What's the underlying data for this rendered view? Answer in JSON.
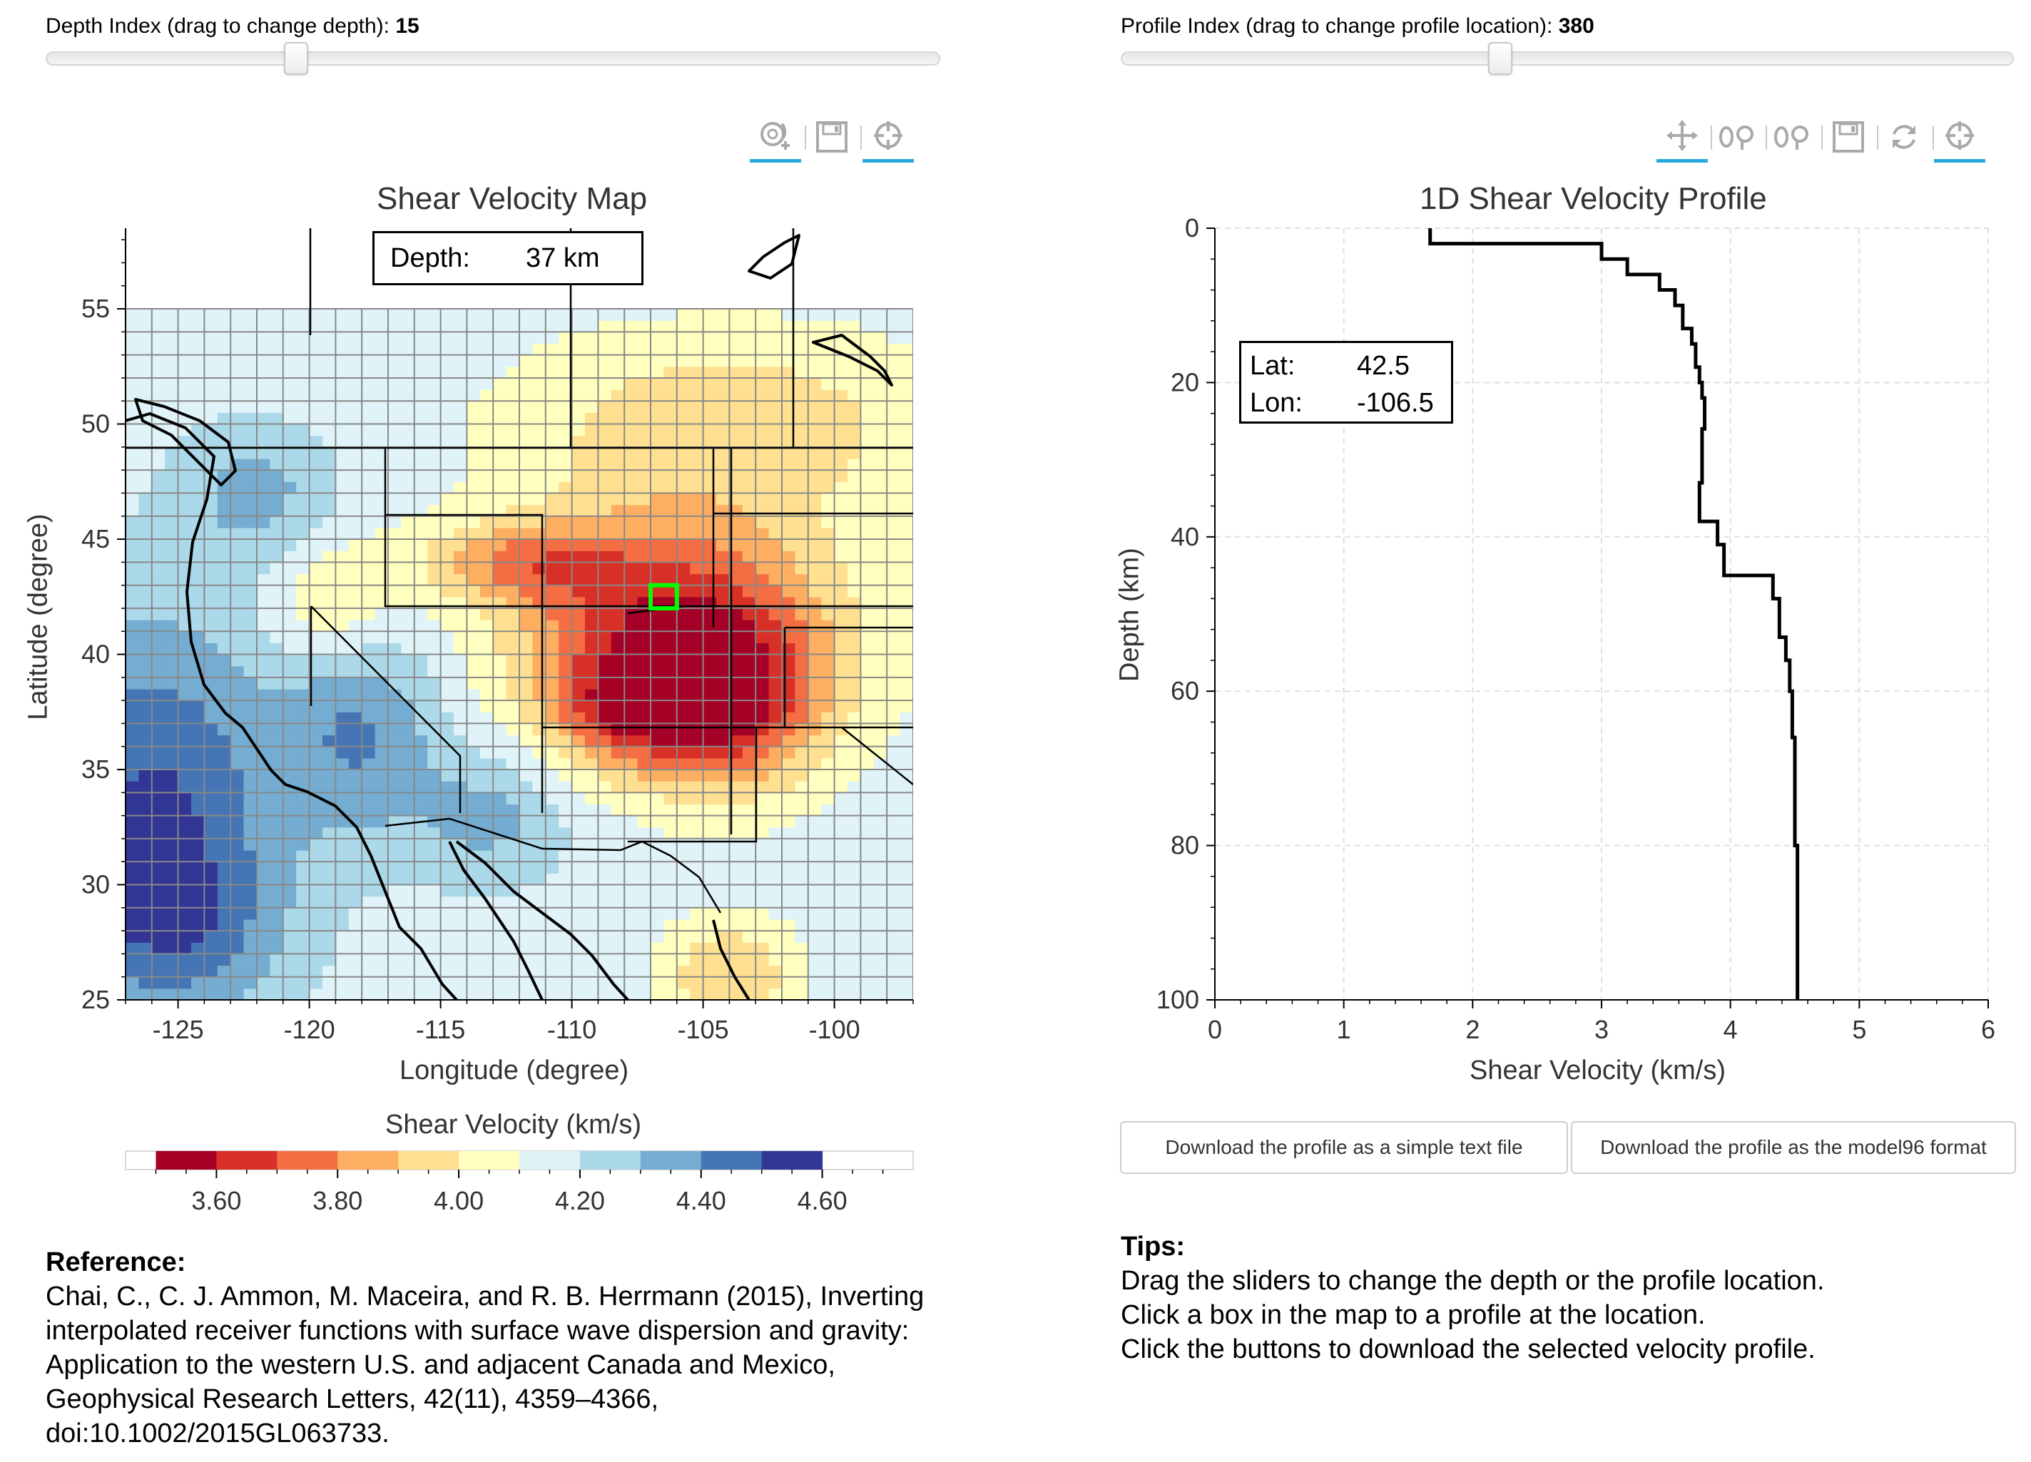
{
  "depth_slider": {
    "label": "Depth Index (drag to change depth):",
    "value": "15",
    "position_fraction": 0.28
  },
  "profile_slider": {
    "label": "Profile Index (drag to change profile location):",
    "value": "380",
    "position_fraction": 0.425
  },
  "map_toolbar": {
    "icons": [
      "zoom-reset-icon",
      "save-icon",
      "crosshair-icon"
    ]
  },
  "profile_toolbar": {
    "icons": [
      "pan-icon",
      "wheel-zoom-x-icon",
      "wheel-zoom-y-icon",
      "save-icon",
      "reset-icon",
      "crosshair-icon"
    ]
  },
  "map": {
    "title": "Shear Velocity Map",
    "depth_box": {
      "label": "Depth:",
      "value": "37 km"
    },
    "xlabel": "Longitude (degree)",
    "ylabel": "Latitude (degree)",
    "x_ticks": [
      "-125",
      "-120",
      "-115",
      "-110",
      "-105",
      "-100"
    ],
    "y_ticks": [
      "55",
      "50",
      "45",
      "40",
      "35",
      "30",
      "25"
    ],
    "xlim": [
      -127,
      -97
    ],
    "ylim": [
      25,
      58.5
    ],
    "selected_cell": {
      "lon": -106.5,
      "lat": 42.5
    },
    "grid_color": "#888888",
    "selection_color": "#00ff00"
  },
  "colorbar": {
    "title": "Shear Velocity (km/s)",
    "ticks": [
      "3.60",
      "3.80",
      "4.00",
      "4.20",
      "4.40",
      "4.60"
    ],
    "colors": [
      "#a50026",
      "#d73027",
      "#f46d43",
      "#fdae61",
      "#fee090",
      "#ffffbf",
      "#e0f3f8",
      "#abd9e9",
      "#74add1",
      "#4575b4",
      "#313695"
    ]
  },
  "profile": {
    "title": "1D Shear Velocity Profile",
    "latlon_box": {
      "lat_label": "Lat:",
      "lat_value": "42.5",
      "lon_label": "Lon:",
      "lon_value": "-106.5"
    },
    "xlabel": "Shear Velocity (km/s)",
    "ylabel": "Depth (km)",
    "x_ticks": [
      "0",
      "1",
      "2",
      "3",
      "4",
      "5",
      "6"
    ],
    "y_ticks": [
      "0",
      "20",
      "40",
      "60",
      "80",
      "100"
    ]
  },
  "chart_data": {
    "type": "line",
    "title": "1D Shear Velocity Profile",
    "xlabel": "Shear Velocity (km/s)",
    "ylabel": "Depth (km)",
    "xlim": [
      0,
      6
    ],
    "ylim": [
      100,
      0
    ],
    "grid": true,
    "x": [
      1.67,
      1.67,
      3.0,
      3.0,
      3.2,
      3.2,
      3.45,
      3.45,
      3.57,
      3.57,
      3.63,
      3.63,
      3.7,
      3.7,
      3.73,
      3.73,
      3.76,
      3.76,
      3.78,
      3.78,
      3.8,
      3.8,
      3.78,
      3.78,
      3.76,
      3.76,
      3.9,
      3.9,
      3.95,
      3.95,
      4.33,
      4.33,
      4.38,
      4.38,
      4.43,
      4.43,
      4.46,
      4.46,
      4.48,
      4.48,
      4.5,
      4.5,
      4.52,
      4.52
    ],
    "y": [
      0,
      2,
      2,
      4,
      4,
      6,
      6,
      8,
      8,
      10,
      10,
      13,
      13,
      15,
      15,
      18,
      18,
      20,
      20,
      22,
      22,
      26,
      26,
      33,
      33,
      38,
      38,
      41,
      41,
      45,
      45,
      48,
      48,
      53,
      53,
      56,
      56,
      60,
      60,
      66,
      66,
      80,
      80,
      100
    ]
  },
  "download_buttons": {
    "simple": "Download the profile as a simple text file",
    "model96": "Download the profile as the model96 format"
  },
  "reference": {
    "heading": "Reference:",
    "lines": [
      "Chai, C., C. J. Ammon, M. Maceira, and R. B. Herrmann (2015), Inverting",
      "interpolated receiver functions with surface wave dispersion and gravity:",
      "Application to the western U.S. and adjacent Canada and Mexico,",
      "Geophysical Research Letters, 42(11), 4359–4366,",
      "doi:10.1002/2015GL063733."
    ]
  },
  "tips": {
    "heading": "Tips:",
    "lines": [
      "Drag the sliders to change the depth or the profile location.",
      "Click a box in the map to a profile at the location.",
      "Click the buttons to download the selected velocity profile."
    ]
  }
}
